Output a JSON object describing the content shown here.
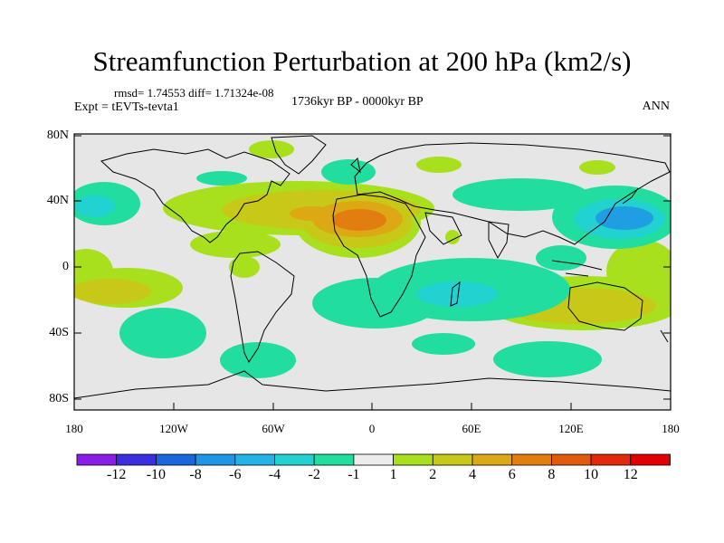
{
  "header": {
    "title": "Streamfunction Perturbation at 200 hPa (km2/s)",
    "stats": "rmsd= 1.74553 diff= 1.71324e-08",
    "experiment": "Expt = tEVTs-tevta1",
    "period": "1736kyr BP - 0000kyr BP",
    "season": "ANN"
  },
  "axes": {
    "y_ticks": [
      "80N",
      "40N",
      "0",
      "40S",
      "80S"
    ],
    "x_ticks": [
      "180",
      "120W",
      "60W",
      "0",
      "60E",
      "120E",
      "180"
    ]
  },
  "colorbar": {
    "labels": [
      "-12",
      "-10",
      "-8",
      "-6",
      "-4",
      "-2",
      "-1",
      "1",
      "2",
      "4",
      "6",
      "8",
      "10",
      "12"
    ],
    "colors": [
      "#8a1ee6",
      "#3a2ee0",
      "#1a66dd",
      "#1f95e6",
      "#22b4e6",
      "#22d2d0",
      "#22dda0",
      "#ececec",
      "#a8e01e",
      "#c8c818",
      "#dca814",
      "#e27e10",
      "#e25a0c",
      "#e02a0a",
      "#e00000"
    ]
  }
}
